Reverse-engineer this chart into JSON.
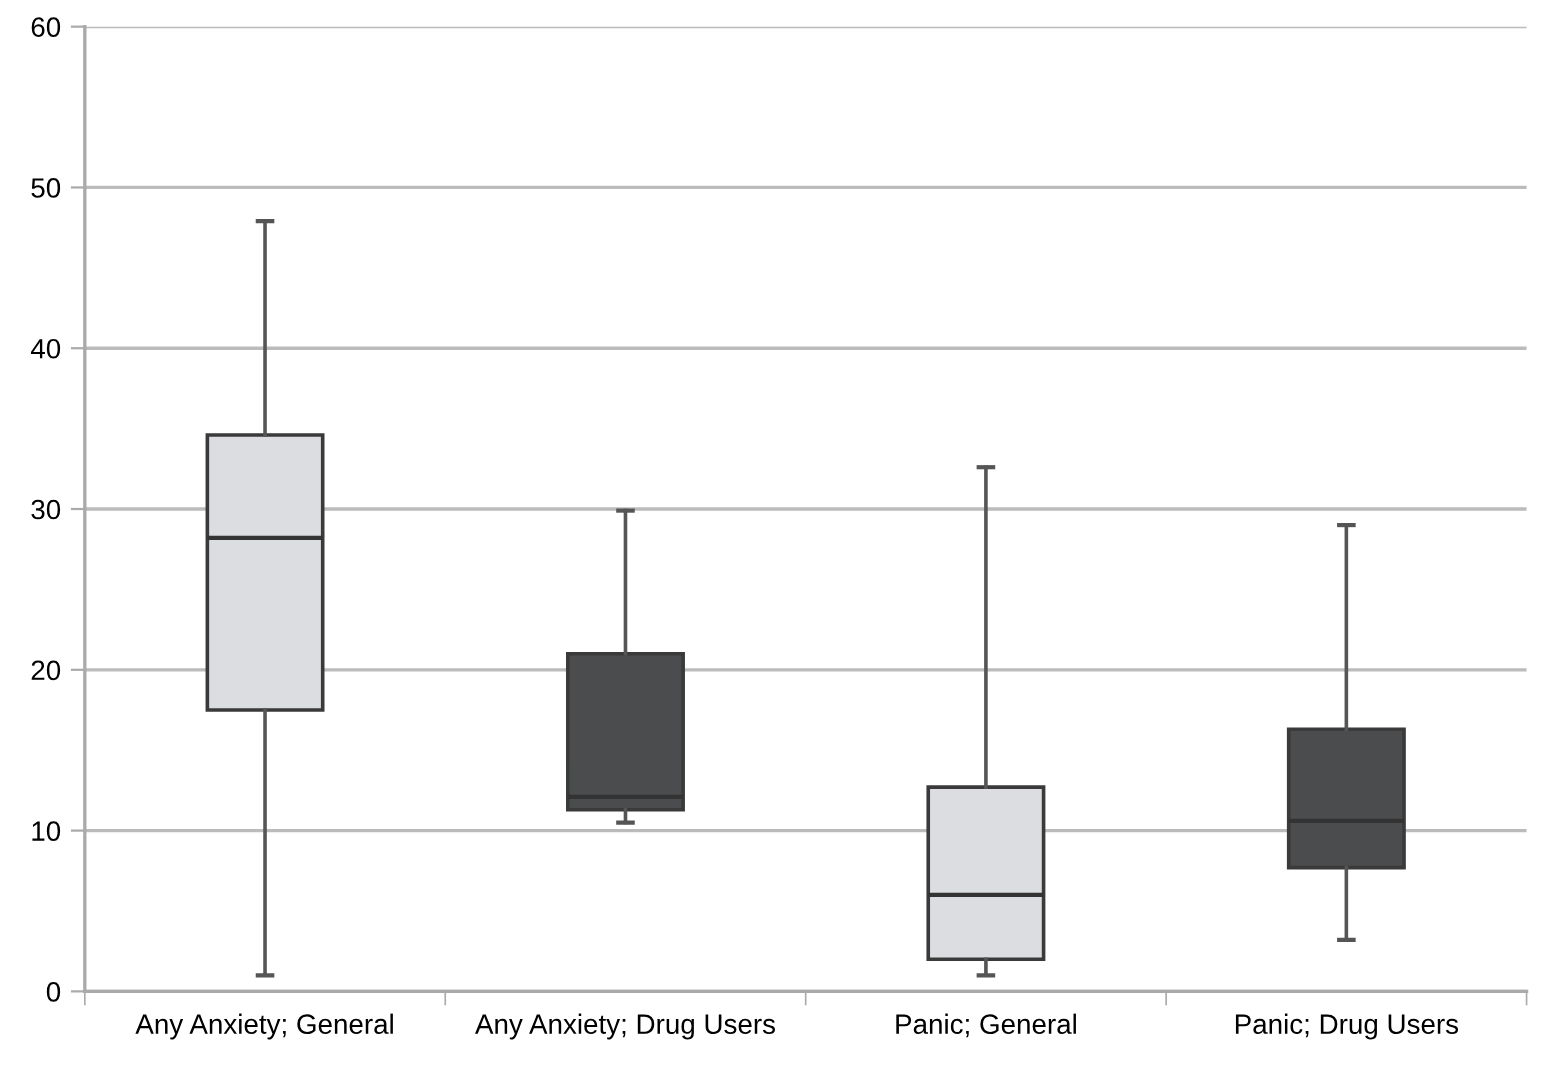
{
  "chart_data": {
    "type": "box",
    "categories": [
      "Any Anxiety; General",
      "Any Anxiety; Drug Users",
      "Panic; General",
      "Panic; Drug Users"
    ],
    "colors": [
      "#dcdde0",
      "#4b4c4e",
      "#dcdde0",
      "#4b4c4e"
    ],
    "boxes": [
      {
        "low": 1.0,
        "q1": 17.5,
        "median": 28.2,
        "q3": 34.6,
        "high": 47.9
      },
      {
        "low": 10.5,
        "q1": 11.3,
        "median": 12.1,
        "q3": 21.0,
        "high": 29.9
      },
      {
        "low": 1.0,
        "q1": 2.0,
        "median": 6.0,
        "q3": 12.7,
        "high": 32.6
      },
      {
        "low": 3.2,
        "q1": 7.7,
        "median": 10.6,
        "q3": 16.3,
        "high": 29.0
      }
    ],
    "ylim": [
      0,
      60
    ],
    "yticks": [
      0,
      10,
      20,
      30,
      40,
      50,
      60
    ],
    "grid": "y"
  }
}
